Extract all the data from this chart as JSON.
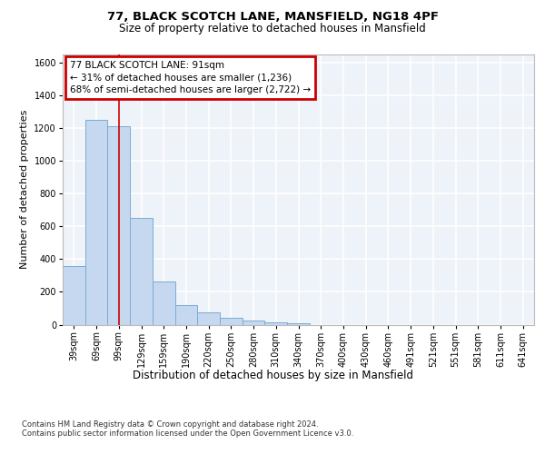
{
  "title_line1": "77, BLACK SCOTCH LANE, MANSFIELD, NG18 4PF",
  "title_line2": "Size of property relative to detached houses in Mansfield",
  "xlabel": "Distribution of detached houses by size in Mansfield",
  "ylabel": "Number of detached properties",
  "bar_labels": [
    "39sqm",
    "69sqm",
    "99sqm",
    "129sqm",
    "159sqm",
    "190sqm",
    "220sqm",
    "250sqm",
    "280sqm",
    "310sqm",
    "340sqm",
    "370sqm",
    "400sqm",
    "430sqm",
    "460sqm",
    "491sqm",
    "521sqm",
    "551sqm",
    "581sqm",
    "611sqm",
    "641sqm"
  ],
  "bar_values": [
    360,
    1250,
    1210,
    650,
    265,
    120,
    75,
    40,
    25,
    15,
    8,
    0,
    0,
    0,
    0,
    0,
    0,
    0,
    0,
    0,
    0
  ],
  "bar_color": "#c5d8f0",
  "bar_edge_color": "#7aadd4",
  "annotation_text": "77 BLACK SCOTCH LANE: 91sqm\n← 31% of detached houses are smaller (1,236)\n68% of semi-detached houses are larger (2,722) →",
  "annotation_box_color": "#ffffff",
  "annotation_box_edge": "#cc0000",
  "vline_x": 2,
  "ylim": [
    0,
    1650
  ],
  "yticks": [
    0,
    200,
    400,
    600,
    800,
    1000,
    1200,
    1400,
    1600
  ],
  "footer_line1": "Contains HM Land Registry data © Crown copyright and database right 2024.",
  "footer_line2": "Contains public sector information licensed under the Open Government Licence v3.0.",
  "bg_color": "#eef2f9",
  "grid_color": "#ffffff",
  "title_fontsize": 9.5,
  "subtitle_fontsize": 8.5,
  "ylabel_fontsize": 8,
  "xlabel_fontsize": 8.5,
  "tick_fontsize": 7,
  "annot_fontsize": 7.5,
  "footer_fontsize": 6
}
